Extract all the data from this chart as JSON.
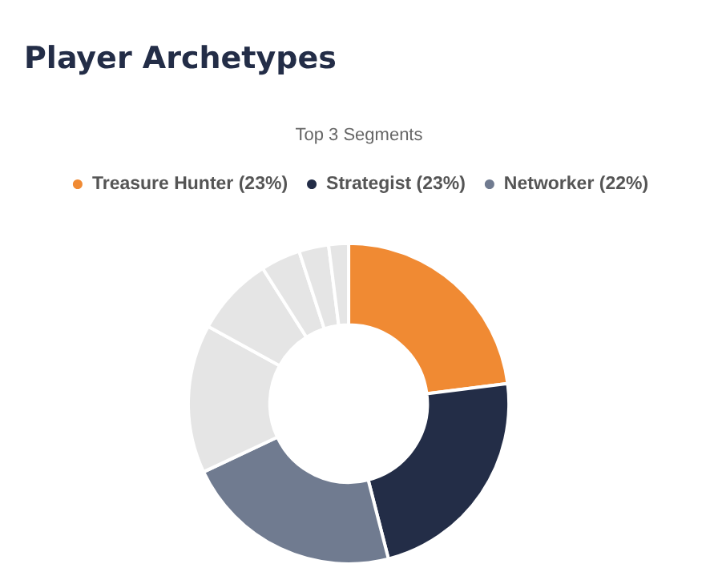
{
  "chart_data": {
    "type": "donut",
    "title": "Player Archetypes",
    "subtitle": "Top 3 Segments",
    "categories": [
      "Treasure Hunter (23%)",
      "Strategist (23%)",
      "Networker (22%)",
      null,
      null,
      null,
      null,
      null
    ],
    "values": [
      23,
      23,
      22,
      15,
      8,
      4,
      3,
      2
    ],
    "colors": [
      "#f08a33",
      "#232d47",
      "#707b90",
      "#e5e5e5",
      "#e5e5e5",
      "#e5e5e5",
      "#e5e5e5",
      "#e5e5e5"
    ],
    "legend": "top"
  }
}
